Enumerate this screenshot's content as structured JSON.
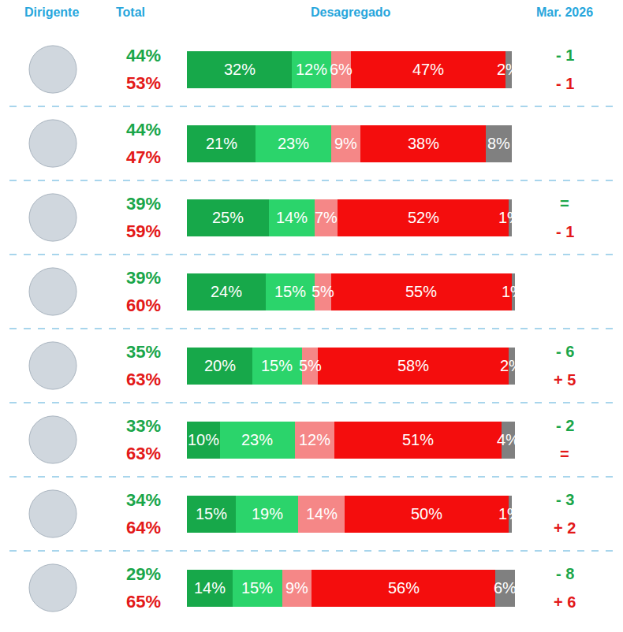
{
  "chart_data": {
    "type": "bar",
    "orientation": "horizontal",
    "stacked": true,
    "data_labels": true,
    "tick_labels": false,
    "grid": false,
    "columns": [
      "Dirigente",
      "Total",
      "Desagregado",
      "Mar. 2026"
    ],
    "categories": [
      null,
      null,
      null,
      null,
      null,
      null,
      null,
      null
    ],
    "xlim": [
      0,
      100
    ],
    "series": [
      {
        "color": "#17a84a",
        "values": [
          32,
          21,
          25,
          24,
          20,
          10,
          15,
          14
        ],
        "value_labels": [
          "32%",
          "21%",
          "25%",
          "24%",
          "20%",
          "10%",
          "15%",
          "14%"
        ]
      },
      {
        "color": "#2bd46b",
        "values": [
          12,
          23,
          14,
          15,
          15,
          23,
          19,
          15
        ],
        "value_labels": [
          "12%",
          "23%",
          "14%",
          "15%",
          "15%",
          "23%",
          "19%",
          "15%"
        ]
      },
      {
        "color": "#f58787",
        "values": [
          6,
          9,
          7,
          5,
          5,
          12,
          14,
          9
        ],
        "value_labels": [
          "6%",
          "9%",
          "7%",
          "5%",
          "5%",
          "12%",
          "14%",
          "9%"
        ]
      },
      {
        "color": "#f40d0d",
        "values": [
          47,
          38,
          52,
          55,
          58,
          51,
          50,
          56
        ],
        "value_labels": [
          "47%",
          "38%",
          "52%",
          "55%",
          "58%",
          "51%",
          "50%",
          "56%"
        ]
      },
      {
        "color": "#808080",
        "values": [
          2,
          8,
          1,
          1,
          2,
          4,
          1,
          6
        ],
        "value_labels": [
          "2%",
          "8%",
          "1%",
          "1%",
          "2%",
          "4%",
          "1%",
          "6%"
        ]
      }
    ],
    "totals": {
      "positive": {
        "color": "#1aa64a",
        "values": [
          44,
          44,
          39,
          39,
          35,
          33,
          34,
          29
        ],
        "value_labels": [
          "44%",
          "44%",
          "39%",
          "39%",
          "35%",
          "33%",
          "34%",
          "29%"
        ]
      },
      "negative": {
        "color": "#e31919",
        "values": [
          53,
          47,
          59,
          60,
          63,
          63,
          64,
          65
        ],
        "value_labels": [
          "53%",
          "47%",
          "59%",
          "60%",
          "63%",
          "63%",
          "64%",
          "65%"
        ]
      }
    },
    "changes": {
      "positive": {
        "color": "#1aa64a",
        "values": [
          -1,
          null,
          0,
          null,
          -6,
          -2,
          -3,
          -8
        ],
        "value_labels": [
          "- 1",
          null,
          "=",
          null,
          "- 6",
          "- 2",
          "- 3",
          "- 8"
        ]
      },
      "negative": {
        "color": "#e31919",
        "values": [
          -1,
          null,
          -1,
          null,
          5,
          0,
          2,
          6
        ],
        "value_labels": [
          "- 1",
          null,
          "- 1",
          null,
          "+ 5",
          "=",
          "+ 2",
          "+ 6"
        ]
      }
    }
  }
}
